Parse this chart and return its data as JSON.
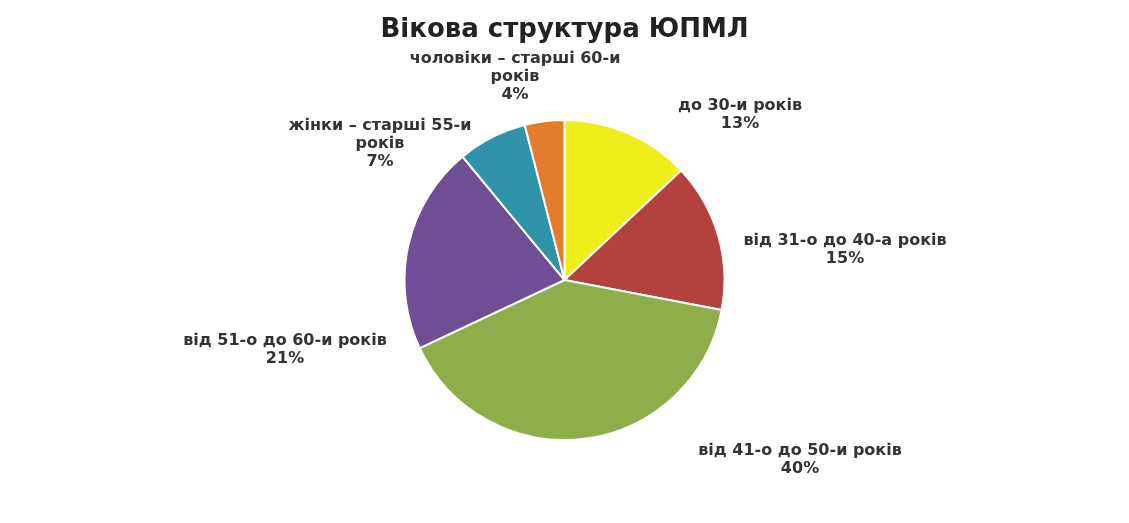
{
  "chart_data": {
    "type": "pie",
    "title": "Вікова структура ЮПМЛ",
    "categories": [
      "до 30-и років",
      "від 31-о до 40-а років",
      "від 41-о до 50-и років",
      "від 51-о до 60-и років",
      "жінки – старші 55-и років",
      "чоловіки – старші 60-и років"
    ],
    "values": [
      13,
      15,
      40,
      21,
      7,
      4
    ],
    "value_labels": [
      "13%",
      "15%",
      "40%",
      "21%",
      "7%",
      "4%"
    ],
    "colors": [
      "#f0ee1a",
      "#b3423e",
      "#8eae4c",
      "#6e4f95",
      "#2f93aa",
      "#e27d2c"
    ],
    "legend": false
  }
}
